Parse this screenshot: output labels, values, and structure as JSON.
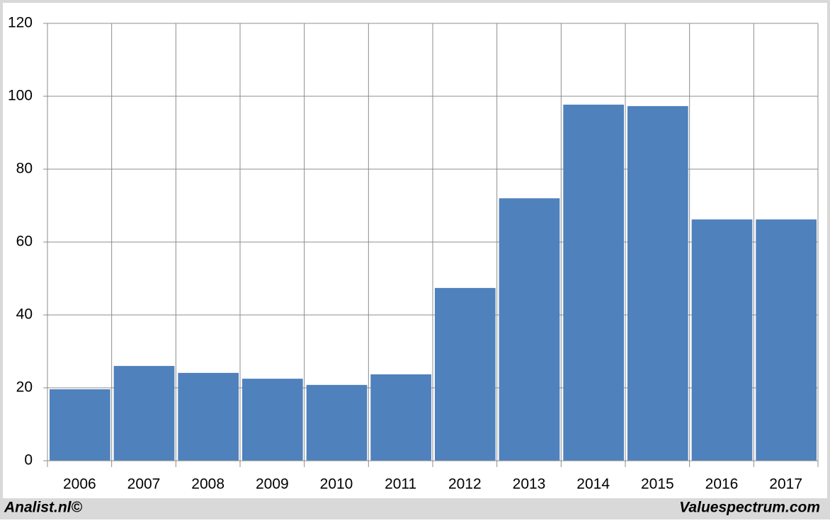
{
  "chart_data": {
    "type": "bar",
    "categories": [
      "2006",
      "2007",
      "2008",
      "2009",
      "2010",
      "2011",
      "2012",
      "2013",
      "2014",
      "2015",
      "2016",
      "2017"
    ],
    "values": [
      19.6,
      26.0,
      24.1,
      22.5,
      20.8,
      23.7,
      47.4,
      72.0,
      97.7,
      97.3,
      66.2,
      66.2
    ],
    "color": "#4f81bd",
    "ylim": [
      0,
      120
    ],
    "yticks": [
      0,
      20,
      40,
      60,
      80,
      100,
      120
    ],
    "grid": true,
    "footer_left": "Analist.nl©",
    "footer_right": "Valuespectrum.com"
  }
}
